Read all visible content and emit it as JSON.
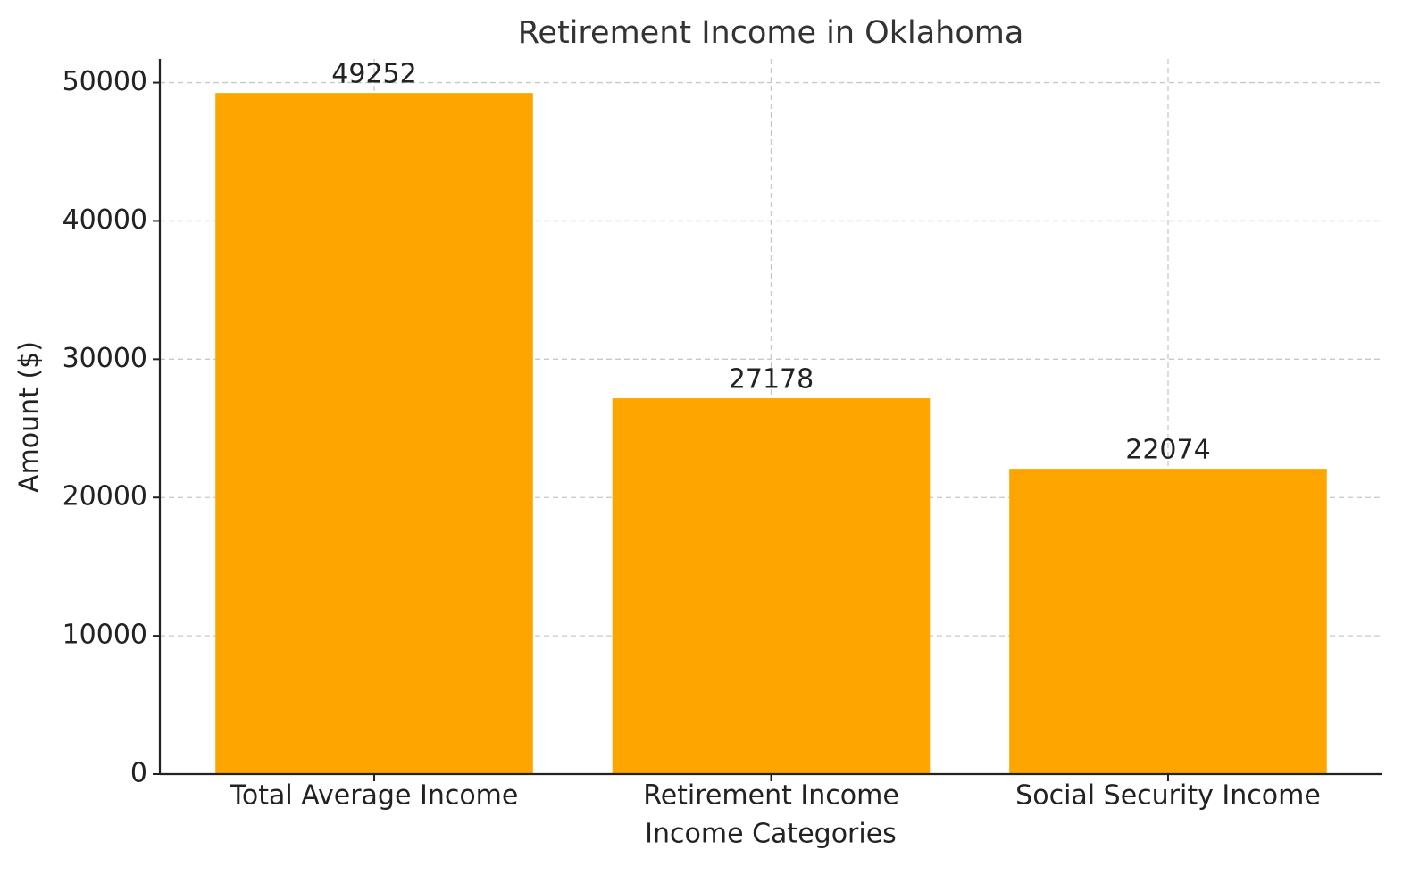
{
  "chart_data": {
    "type": "bar",
    "title": "Retirement Income in Oklahoma",
    "x_label": "Income Categories",
    "y_label": "Amount ($)",
    "categories": [
      "Total Average Income",
      "Retirement Income",
      "Social Security Income"
    ],
    "values": [
      49252,
      27178,
      22074
    ],
    "color": "#ffa500",
    "ylim": [
      0,
      51714.6
    ],
    "yticks": [
      0,
      10000,
      20000,
      30000,
      40000,
      50000
    ],
    "grid": true
  }
}
